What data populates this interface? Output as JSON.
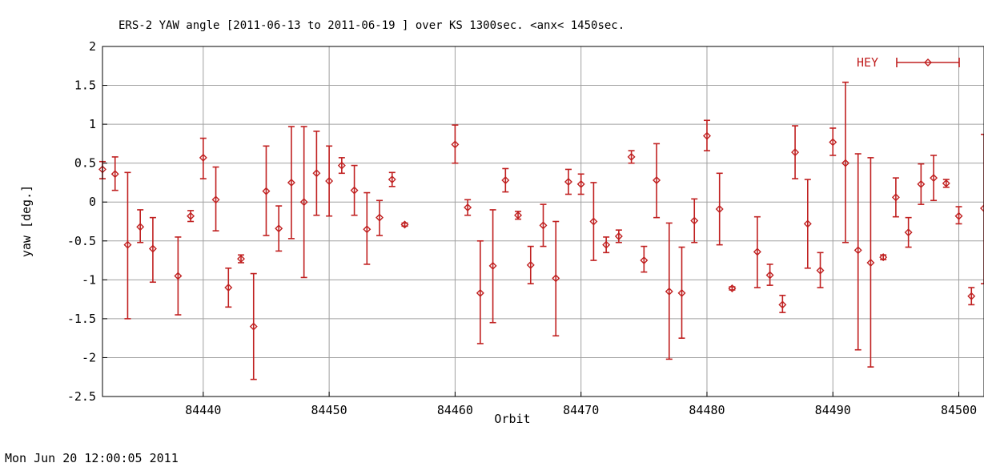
{
  "chart_data": {
    "type": "scatter",
    "title": "ERS-2 YAW angle [2011-06-13 to 2011-06-19 ] over KS 1300sec. <anx< 1450sec.",
    "xlabel": "Orbit",
    "ylabel": "yaw [deg.]",
    "xlim": [
      84432,
      84502
    ],
    "ylim": [
      -2.5,
      2
    ],
    "xticks": [
      84440,
      84450,
      84460,
      84470,
      84480,
      84490,
      84500
    ],
    "yticks": [
      -2.5,
      -2,
      -1.5,
      -1,
      -0.5,
      0,
      0.5,
      1,
      1.5,
      2
    ],
    "ytick_labels": [
      "-2.5",
      "-2",
      "-1.5",
      "-1",
      "-0.5",
      "0",
      "0.5",
      "1",
      "1.5",
      "2"
    ],
    "grid": true,
    "legend": "top-right",
    "series": [
      {
        "name": "HEY",
        "color": "#c02020",
        "style": "errorbars",
        "points": [
          {
            "x": 84432,
            "y": 0.42,
            "lo": 0.3,
            "hi": 0.52
          },
          {
            "x": 84433,
            "y": 0.36,
            "lo": 0.15,
            "hi": 0.58
          },
          {
            "x": 84434,
            "y": -0.55,
            "lo": -1.5,
            "hi": 0.38
          },
          {
            "x": 84435,
            "y": -0.32,
            "lo": -0.52,
            "hi": -0.1
          },
          {
            "x": 84436,
            "y": -0.6,
            "lo": -1.03,
            "hi": -0.2
          },
          {
            "x": 84438,
            "y": -0.95,
            "lo": -1.45,
            "hi": -0.45
          },
          {
            "x": 84439,
            "y": -0.18,
            "lo": -0.25,
            "hi": -0.11
          },
          {
            "x": 84440,
            "y": 0.57,
            "lo": 0.3,
            "hi": 0.82
          },
          {
            "x": 84441,
            "y": 0.03,
            "lo": -0.37,
            "hi": 0.45
          },
          {
            "x": 84442,
            "y": -1.1,
            "lo": -1.35,
            "hi": -0.85
          },
          {
            "x": 84443,
            "y": -0.73,
            "lo": -0.78,
            "hi": -0.68
          },
          {
            "x": 84444,
            "y": -1.6,
            "lo": -2.28,
            "hi": -0.92
          },
          {
            "x": 84445,
            "y": 0.14,
            "lo": -0.43,
            "hi": 0.72
          },
          {
            "x": 84446,
            "y": -0.34,
            "lo": -0.63,
            "hi": -0.05
          },
          {
            "x": 84447,
            "y": 0.25,
            "lo": -0.47,
            "hi": 0.97
          },
          {
            "x": 84448,
            "y": 0.0,
            "lo": -0.97,
            "hi": 0.97
          },
          {
            "x": 84449,
            "y": 0.37,
            "lo": -0.17,
            "hi": 0.91
          },
          {
            "x": 84450,
            "y": 0.27,
            "lo": -0.18,
            "hi": 0.72
          },
          {
            "x": 84451,
            "y": 0.47,
            "lo": 0.37,
            "hi": 0.57
          },
          {
            "x": 84452,
            "y": 0.15,
            "lo": -0.17,
            "hi": 0.47
          },
          {
            "x": 84453,
            "y": -0.35,
            "lo": -0.8,
            "hi": 0.12
          },
          {
            "x": 84454,
            "y": -0.2,
            "lo": -0.43,
            "hi": 0.02
          },
          {
            "x": 84455,
            "y": 0.29,
            "lo": 0.2,
            "hi": 0.38
          },
          {
            "x": 84456,
            "y": -0.29,
            "lo": -0.31,
            "hi": -0.27
          },
          {
            "x": 84460,
            "y": 0.74,
            "lo": 0.5,
            "hi": 0.99
          },
          {
            "x": 84461,
            "y": -0.07,
            "lo": -0.17,
            "hi": 0.03
          },
          {
            "x": 84462,
            "y": -1.17,
            "lo": -1.82,
            "hi": -0.5
          },
          {
            "x": 84463,
            "y": -0.82,
            "lo": -1.55,
            "hi": -0.1
          },
          {
            "x": 84464,
            "y": 0.28,
            "lo": 0.13,
            "hi": 0.43
          },
          {
            "x": 84465,
            "y": -0.17,
            "lo": -0.22,
            "hi": -0.12
          },
          {
            "x": 84466,
            "y": -0.81,
            "lo": -1.05,
            "hi": -0.57
          },
          {
            "x": 84467,
            "y": -0.3,
            "lo": -0.57,
            "hi": -0.03
          },
          {
            "x": 84468,
            "y": -0.98,
            "lo": -1.72,
            "hi": -0.25
          },
          {
            "x": 84469,
            "y": 0.26,
            "lo": 0.1,
            "hi": 0.42
          },
          {
            "x": 84470,
            "y": 0.23,
            "lo": 0.1,
            "hi": 0.36
          },
          {
            "x": 84471,
            "y": -0.25,
            "lo": -0.75,
            "hi": 0.25
          },
          {
            "x": 84472,
            "y": -0.55,
            "lo": -0.65,
            "hi": -0.45
          },
          {
            "x": 84473,
            "y": -0.44,
            "lo": -0.52,
            "hi": -0.36
          },
          {
            "x": 84474,
            "y": 0.58,
            "lo": 0.5,
            "hi": 0.66
          },
          {
            "x": 84475,
            "y": -0.75,
            "lo": -0.9,
            "hi": -0.57
          },
          {
            "x": 84476,
            "y": 0.28,
            "lo": -0.2,
            "hi": 0.75
          },
          {
            "x": 84477,
            "y": -1.15,
            "lo": -2.02,
            "hi": -0.27
          },
          {
            "x": 84478,
            "y": -1.17,
            "lo": -1.75,
            "hi": -0.58
          },
          {
            "x": 84479,
            "y": -0.24,
            "lo": -0.52,
            "hi": 0.04
          },
          {
            "x": 84480,
            "y": 0.85,
            "lo": 0.66,
            "hi": 1.05
          },
          {
            "x": 84481,
            "y": -0.09,
            "lo": -0.55,
            "hi": 0.37
          },
          {
            "x": 84482,
            "y": -1.11,
            "lo": -1.13,
            "hi": -1.09
          },
          {
            "x": 84484,
            "y": -0.64,
            "lo": -1.1,
            "hi": -0.19
          },
          {
            "x": 84485,
            "y": -0.94,
            "lo": -1.07,
            "hi": -0.8
          },
          {
            "x": 84486,
            "y": -1.32,
            "lo": -1.42,
            "hi": -1.2
          },
          {
            "x": 84487,
            "y": 0.64,
            "lo": 0.3,
            "hi": 0.98
          },
          {
            "x": 84488,
            "y": -0.28,
            "lo": -0.85,
            "hi": 0.29
          },
          {
            "x": 84489,
            "y": -0.88,
            "lo": -1.1,
            "hi": -0.65
          },
          {
            "x": 84490,
            "y": 0.77,
            "lo": 0.6,
            "hi": 0.95
          },
          {
            "x": 84491,
            "y": 0.5,
            "lo": -0.52,
            "hi": 1.54
          },
          {
            "x": 84492,
            "y": -0.62,
            "lo": -1.9,
            "hi": 0.62
          },
          {
            "x": 84493,
            "y": -0.78,
            "lo": -2.12,
            "hi": 0.57
          },
          {
            "x": 84494,
            "y": -0.71,
            "lo": -0.74,
            "hi": -0.68
          },
          {
            "x": 84495,
            "y": 0.06,
            "lo": -0.19,
            "hi": 0.31
          },
          {
            "x": 84496,
            "y": -0.39,
            "lo": -0.58,
            "hi": -0.2
          },
          {
            "x": 84497,
            "y": 0.23,
            "lo": -0.03,
            "hi": 0.49
          },
          {
            "x": 84498,
            "y": 0.31,
            "lo": 0.02,
            "hi": 0.6
          },
          {
            "x": 84499,
            "y": 0.24,
            "lo": 0.19,
            "hi": 0.29
          },
          {
            "x": 84500,
            "y": -0.18,
            "lo": -0.28,
            "hi": -0.06
          },
          {
            "x": 84501,
            "y": -1.21,
            "lo": -1.32,
            "hi": -1.1
          },
          {
            "x": 84502,
            "y": -0.08,
            "lo": -1.05,
            "hi": 0.87
          }
        ]
      }
    ]
  },
  "timestamp": "Mon Jun 20 12:00:05 2011"
}
